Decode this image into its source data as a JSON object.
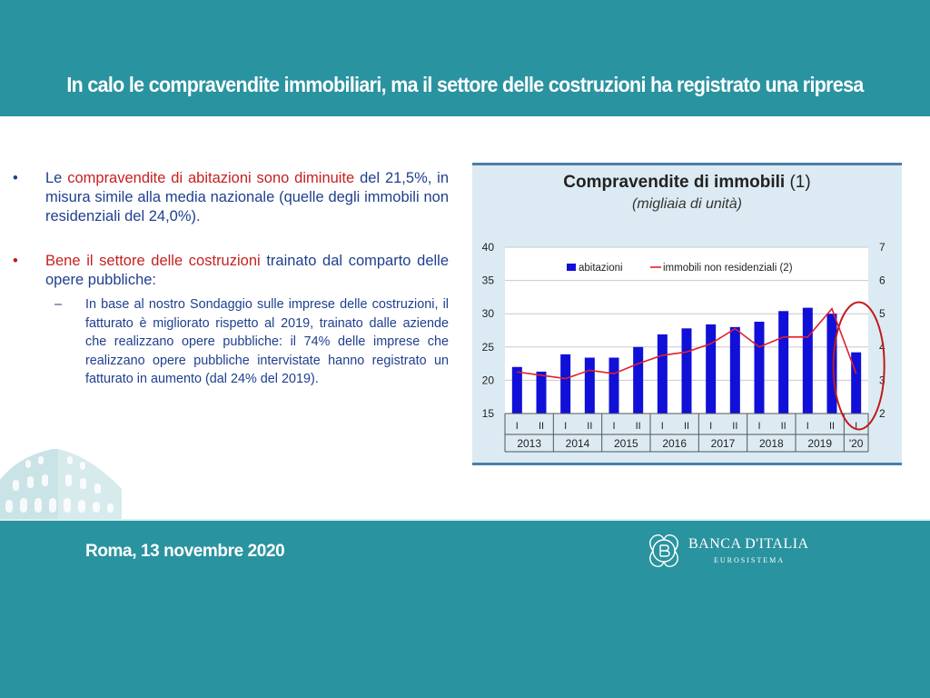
{
  "header": {
    "title": "In calo le compravendite immobiliari, ma il settore delle costruzioni ha registrato una ripresa"
  },
  "content": {
    "bullet1": {
      "marker": "•",
      "pre": "Le ",
      "highlight": "compravendite di abitazioni sono diminuite",
      "post": " del 21,5%, in misura simile alla media nazionale (quelle degli immobili non residenziali del 24,0%)."
    },
    "bullet2": {
      "marker": "•",
      "highlight": "Bene il settore delle costruzioni",
      "post": " trainato dal comparto delle opere pubbliche:"
    },
    "sub_bullet": {
      "marker": "–",
      "text": "In base al nostro Sondaggio sulle imprese delle costruzioni, il fatturato è migliorato rispetto al 2019, trainato dalle aziende che realizzano opere pubbliche: il 74% delle imprese che realizzano opere pubbliche intervistate hanno registrato un fatturato in aumento (dal 24% del 2019)."
    }
  },
  "footer": {
    "date": "Roma, 13 novembre 2020",
    "logo_name": "BANCA D'ITALIA",
    "logo_sub": "EUROSISTEMA"
  },
  "colors": {
    "band": "#2a93a0",
    "bars": "#1010d8",
    "line": "#e0202a",
    "circle": "#c01a1a",
    "text_blue": "#1f3f8f",
    "text_red": "#c8201f"
  },
  "chart_data": {
    "type": "bar",
    "title": "Compravendite di immobili",
    "title_note": "(1)",
    "subtitle": "(migliaia di unità)",
    "categories": [
      "I",
      "II",
      "I",
      "II",
      "I",
      "II",
      "I",
      "II",
      "I",
      "II",
      "I",
      "II",
      "I",
      "II",
      "I"
    ],
    "year_labels": [
      "2013",
      "2014",
      "2015",
      "2016",
      "2017",
      "2018",
      "2019",
      "'20"
    ],
    "y_left": {
      "ylim": [
        15,
        40
      ],
      "ticks": [
        "15",
        "20",
        "25",
        "30",
        "35",
        "40"
      ]
    },
    "y_right": {
      "ylim": [
        2,
        7
      ],
      "ticks": [
        "2",
        "3",
        "4",
        "5",
        "6",
        "7"
      ]
    },
    "series": [
      {
        "name": "abitazioni",
        "axis": "left",
        "kind": "bar",
        "values": [
          22.0,
          21.3,
          23.9,
          23.4,
          23.4,
          25.0,
          26.9,
          27.8,
          28.4,
          28.0,
          28.8,
          30.4,
          30.9,
          30.0,
          24.2
        ]
      },
      {
        "name": "immobili non residenziali (2)",
        "axis": "right",
        "kind": "line",
        "values": [
          3.25,
          3.15,
          3.05,
          3.3,
          3.2,
          3.5,
          3.75,
          3.85,
          4.1,
          4.55,
          4.0,
          4.3,
          4.3,
          5.15,
          3.2
        ]
      }
    ],
    "annotations": [
      "highlight circle around 2020 Q1"
    ],
    "grid": true,
    "legend_position": "top"
  }
}
